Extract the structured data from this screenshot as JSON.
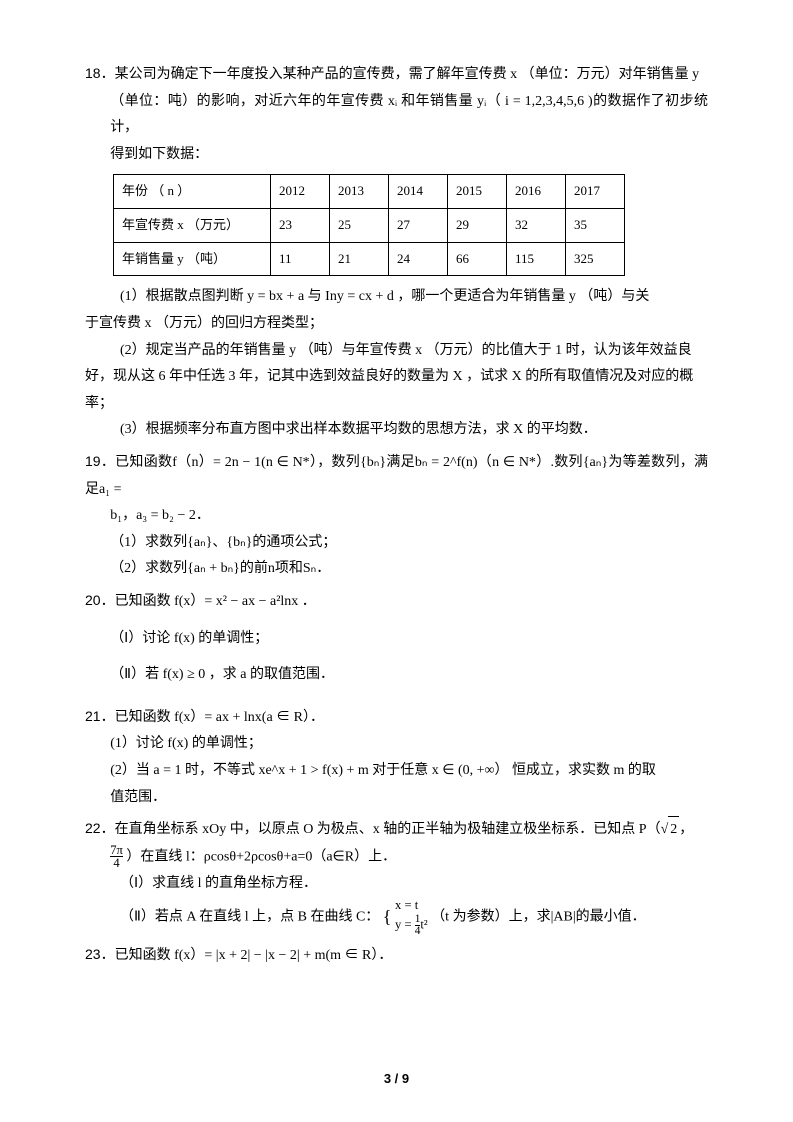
{
  "page_number": "3 / 9",
  "q18": {
    "num": "18．",
    "intro_l1": "某公司为确定下一年度投入某种产品的宣传费，需了解年宣传费 x （单位：万元）对年销售量 y",
    "intro_l2": "（单位：吨）的影响，对近六年的年宣传费 xᵢ 和年销售量 yᵢ（ i = 1,2,3,4,5,6 )的数据作了初步统计，",
    "intro_l3": "得到如下数据：",
    "table": {
      "row1": [
        "年份 （ n ）",
        "2012",
        "2013",
        "2014",
        "2015",
        "2016",
        "2017"
      ],
      "row2": [
        "年宣传费 x （万元）",
        "23",
        "25",
        "27",
        "29",
        "32",
        "35"
      ],
      "row3": [
        "年销售量 y （吨）",
        "11",
        "21",
        "24",
        "66",
        "115",
        "325"
      ]
    },
    "p1_l1": "(1）根据散点图判断 y = bx + a 与 Iny = cx + d ，哪一个更适合为年销售量 y （吨）与关",
    "p1_l2": "于宣传费 x （万元）的回归方程类型；",
    "p2_l1": "(2）规定当产品的年销售量 y （吨）与年宣传费 x （万元）的比值大于 1 时，认为该年效益良",
    "p2_l2": "好，现从这 6 年中任选 3 年，记其中选到效益良好的数量为 X ，试求 X 的所有取值情况及对应的概",
    "p2_l3": "率；",
    "p3": "(3）根据频率分布直方图中求出样本数据平均数的思想方法，求 X 的平均数．"
  },
  "q19": {
    "num": "19．",
    "l1": "已知函数f（n）= 2n − 1(n ∈ N*），数列{bₙ}满足bₙ = 2^f(n)（n ∈ N*）.数列{aₙ}为等差数列，满足a₁ =",
    "l2": "b₁，a₃ = b₂ − 2．",
    "p1": "（1）求数列{aₙ}、{bₙ}的通项公式；",
    "p2": "（2）求数列{aₙ + bₙ}的前n项和Sₙ．"
  },
  "q20": {
    "num": "20．",
    "l1": "已知函数 f(x）= x² − ax − a²lnx ．",
    "p1": "（Ⅰ）讨论 f(x) 的单调性；",
    "p2": "（Ⅱ）若 f(x) ≥ 0 ，求 a 的取值范围．"
  },
  "q21": {
    "num": "21．",
    "l1": "已知函数 f(x）= ax + lnx(a ∈ R）．",
    "p1": "(1）讨论 f(x) 的单调性；",
    "p2_l1": "(2）当 a = 1 时，不等式 xe^x + 1 > f(x) + m 对于任意 x ∈ (0, +∞） 恒成立，求实数 m 的取",
    "p2_l2": "值范围．"
  },
  "q22": {
    "num": "22．",
    "l1_a": "在直角坐标系 xOy 中，以原点 O 为极点、x 轴的正半轴为极轴建立极坐标系．已知点 P（",
    "l1_b": "，",
    "l2_a": "）在直线 l：ρcosθ+2ρcosθ+a=0（a∈R）上．",
    "frac_num": "7π",
    "frac_den": "4",
    "sqrt_val": "2",
    "p1": "（Ⅰ）求直线 l 的直角坐标方程．",
    "p2_a": "（Ⅱ）若点 A 在直线 l 上，点 B 在曲线 C：",
    "p2_b": "（t 为参数）上，求|AB|的最小值．",
    "piece1": "x = t",
    "piece2_a": "y = ",
    "piece2_num": "1",
    "piece2_den": "4",
    "piece2_b": "t²"
  },
  "q23": {
    "num": "23．",
    "l1": "已知函数 f(x）= |x + 2| − |x − 2| + m(m ∈ R）．"
  }
}
